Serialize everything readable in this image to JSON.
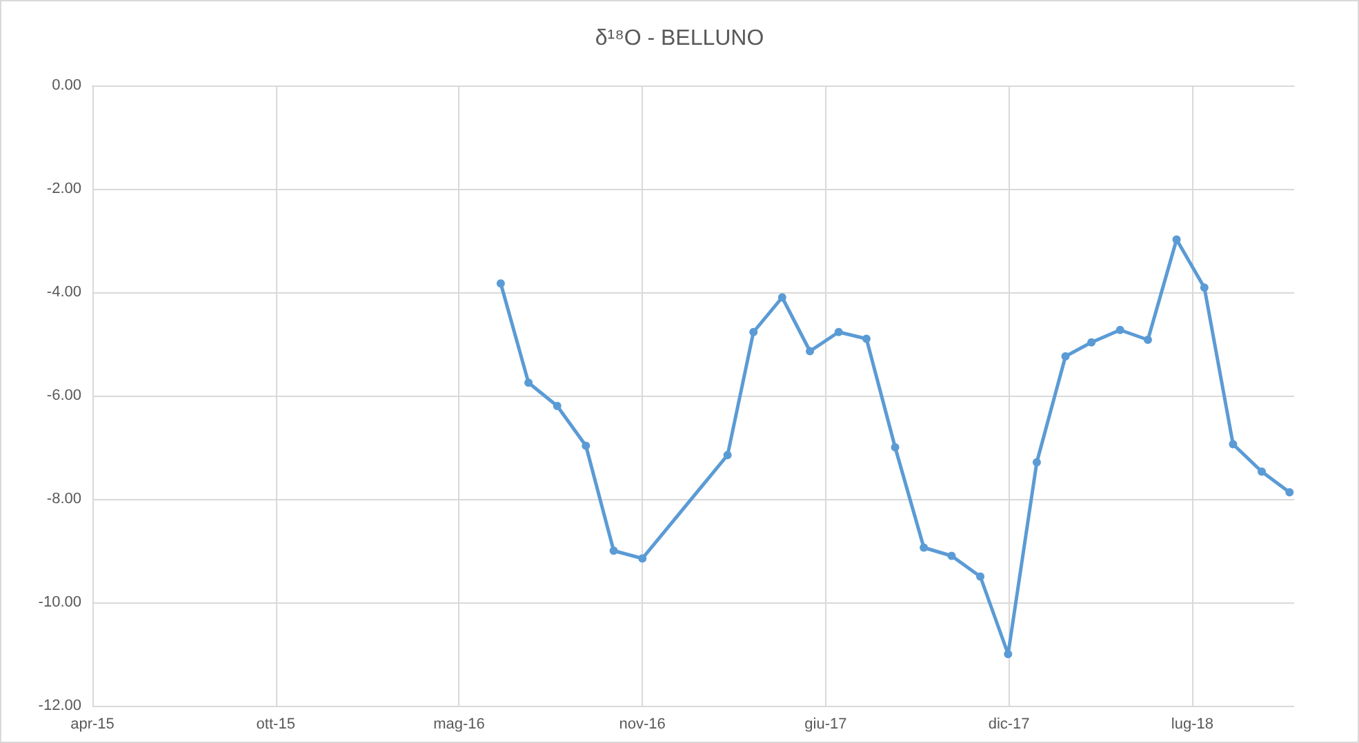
{
  "chart_data": {
    "type": "line",
    "title": "δ¹⁸O - BELLUNO",
    "x": [
      "2016-06-15",
      "2016-07-15",
      "2016-08-15",
      "2016-09-15",
      "2016-10-15",
      "2016-11-15",
      "2017-02-15",
      "2017-03-15",
      "2017-04-15",
      "2017-05-15",
      "2017-06-15",
      "2017-07-15",
      "2017-08-15",
      "2017-09-15",
      "2017-10-15",
      "2017-11-15",
      "2017-12-15",
      "2018-01-15",
      "2018-02-15",
      "2018-03-15",
      "2018-04-15",
      "2018-05-15",
      "2018-06-15",
      "2018-07-15",
      "2018-08-15",
      "2018-09-15",
      "2018-10-15"
    ],
    "series": [
      {
        "color": "#5b9bd5",
        "values": [
          -3.83,
          -5.75,
          -6.2,
          -6.97,
          -9.0,
          -9.15,
          -7.15,
          -4.77,
          -4.1,
          -5.14,
          -4.77,
          -4.9,
          -7.0,
          -8.94,
          -9.1,
          -9.5,
          -11.0,
          -7.29,
          -5.24,
          -4.97,
          -4.73,
          -4.92,
          -2.98,
          -3.91,
          -6.94,
          -7.47,
          -7.87
        ]
      }
    ],
    "xlim": [
      "2015-04-01",
      "2018-10-20"
    ],
    "xticks": [
      {
        "value": "2015-04-01",
        "label": "apr-15"
      },
      {
        "value": "2015-10-16",
        "label": "ott-15"
      },
      {
        "value": "2016-05-01",
        "label": "mag-16"
      },
      {
        "value": "2016-11-15",
        "label": "nov-16"
      },
      {
        "value": "2017-06-01",
        "label": "giu-17"
      },
      {
        "value": "2017-12-16",
        "label": "dic-17"
      },
      {
        "value": "2018-07-02",
        "label": "lug-18"
      }
    ],
    "ylim": [
      -12,
      0
    ],
    "yticks": [
      {
        "value": 0,
        "label": "0.00"
      },
      {
        "value": -2,
        "label": "-2.00"
      },
      {
        "value": -4,
        "label": "-4.00"
      },
      {
        "value": -6,
        "label": "-6.00"
      },
      {
        "value": -8,
        "label": "-8.00"
      },
      {
        "value": -10,
        "label": "-10.00"
      },
      {
        "value": -12,
        "label": "-12.00"
      }
    ],
    "grid": true,
    "marker": "circle",
    "line_style": "solid"
  }
}
